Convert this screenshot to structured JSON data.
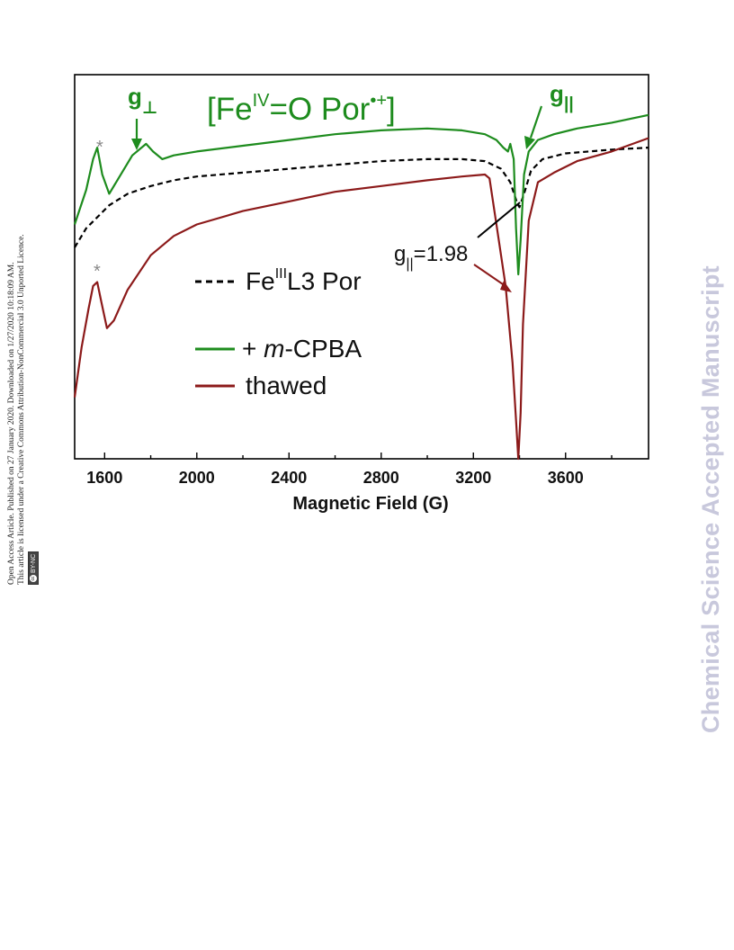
{
  "side_notice": {
    "line1": "Open Access Article. Published on 27 January 2020. Downloaded on 1/27/2020 10:18:09 AM.",
    "line2": "This article is licensed under a Creative Commons Attribution-NonCommercial 3.0 Unported Licence.",
    "badge": "BY-NC",
    "badge_icon": "cc-icon"
  },
  "watermark": "Chemical Science Accepted Manuscript",
  "colors": {
    "green": "#1e8c1e",
    "red": "#8c1a1a",
    "black": "#000000",
    "grey": "#888888"
  },
  "chart_data": {
    "type": "line",
    "xlabel": "Magnetic Field (G)",
    "xlim": [
      1470,
      3960
    ],
    "x_ticks": [
      1600,
      2000,
      2400,
      2800,
      3200,
      3600
    ],
    "ylim": [
      0,
      1
    ],
    "annotations": {
      "species": "[Fe",
      "species_sup": "IV",
      "species_mid": "=O Por",
      "species_sup2": "•+",
      "species_end": "]",
      "g_perp": "g",
      "g_perp_sub": "⊥",
      "g_par": "g",
      "g_par_sub": "||",
      "g_value_main": "g",
      "g_value_sub": "||",
      "g_value_rest": "=1.98",
      "asterisk_top": "*",
      "asterisk_bottom": "*"
    },
    "legend": [
      {
        "label_pre": "Fe",
        "label_sup": "III",
        "label_post": "L3 Por",
        "style": "dashed",
        "color": "#000000"
      },
      {
        "label_pre": "+ ",
        "label_italic": "m",
        "label_post": "-CPBA",
        "style": "solid",
        "color": "#1e8c1e"
      },
      {
        "label_pre": "thawed",
        "style": "solid",
        "color": "#8c1a1a"
      }
    ],
    "series": [
      {
        "style": "dashed",
        "color": "#000000",
        "x": [
          1470,
          1520,
          1570,
          1620,
          1700,
          1800,
          1900,
          2000,
          2200,
          2400,
          2600,
          2800,
          3000,
          3150,
          3250,
          3320,
          3360,
          3390,
          3400,
          3420,
          3450,
          3500,
          3600,
          3700,
          3800,
          3960
        ],
        "y": [
          0.55,
          0.6,
          0.63,
          0.66,
          0.69,
          0.71,
          0.725,
          0.735,
          0.745,
          0.755,
          0.765,
          0.775,
          0.78,
          0.78,
          0.775,
          0.755,
          0.72,
          0.665,
          0.655,
          0.69,
          0.75,
          0.78,
          0.795,
          0.8,
          0.805,
          0.81
        ]
      },
      {
        "style": "solid",
        "color": "#1e8c1e",
        "x": [
          1470,
          1520,
          1550,
          1568,
          1590,
          1620,
          1660,
          1720,
          1780,
          1810,
          1850,
          1900,
          2000,
          2200,
          2400,
          2600,
          2800,
          3000,
          3150,
          3250,
          3300,
          3330,
          3350,
          3360,
          3375,
          3385,
          3395,
          3405,
          3420,
          3440,
          3480,
          3550,
          3650,
          3800,
          3960
        ],
        "y": [
          0.61,
          0.7,
          0.78,
          0.81,
          0.74,
          0.69,
          0.73,
          0.79,
          0.82,
          0.8,
          0.78,
          0.79,
          0.8,
          0.815,
          0.83,
          0.845,
          0.855,
          0.86,
          0.855,
          0.845,
          0.83,
          0.81,
          0.8,
          0.82,
          0.78,
          0.6,
          0.48,
          0.57,
          0.74,
          0.8,
          0.83,
          0.845,
          0.86,
          0.875,
          0.895
        ]
      },
      {
        "style": "solid",
        "color": "#8c1a1a",
        "x": [
          1470,
          1500,
          1530,
          1550,
          1568,
          1585,
          1610,
          1640,
          1700,
          1800,
          1900,
          2000,
          2200,
          2400,
          2600,
          2800,
          3000,
          3150,
          3250,
          3270,
          3300,
          3340,
          3370,
          3385,
          3395,
          3405,
          3415,
          3440,
          3480,
          3550,
          3650,
          3800,
          3960
        ],
        "y": [
          0.16,
          0.29,
          0.39,
          0.45,
          0.46,
          0.41,
          0.34,
          0.36,
          0.44,
          0.53,
          0.58,
          0.61,
          0.645,
          0.67,
          0.695,
          0.71,
          0.725,
          0.735,
          0.74,
          0.73,
          0.61,
          0.45,
          0.25,
          0.1,
          0.0,
          0.12,
          0.35,
          0.62,
          0.72,
          0.745,
          0.775,
          0.8,
          0.835
        ]
      }
    ]
  }
}
